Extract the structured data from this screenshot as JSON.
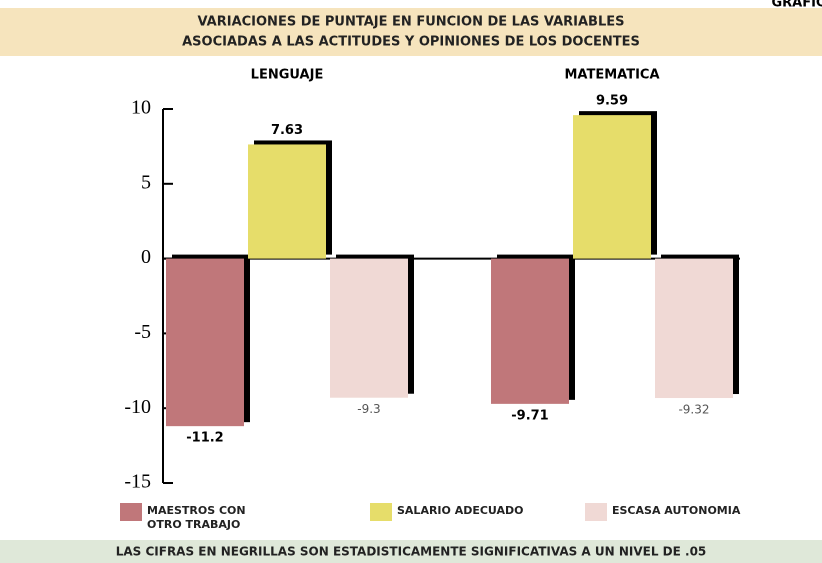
{
  "badge": "GRAFICO",
  "chart_data": {
    "type": "bar",
    "title": [
      "VARIACIONES DE PUNTAJE EN FUNCION DE LAS VARIABLES",
      "ASOCIADAS A LAS ACTITUDES Y OPINIONES DE LOS DOCENTES"
    ],
    "categories": [
      "LENGUAJE",
      "MATEMATICA"
    ],
    "series": [
      {
        "name": "MAESTROS CON OTRO TRABAJO",
        "color": "#c0777a",
        "values": [
          -11.2,
          -9.71
        ],
        "bold": [
          true,
          true
        ]
      },
      {
        "name": "SALARIO ADECUADO",
        "color": "#e6dd6a",
        "values": [
          7.63,
          9.59
        ],
        "bold": [
          true,
          true
        ]
      },
      {
        "name": "ESCASA AUTONOMIA",
        "color": "#f0d9d5",
        "values": [
          -9.3,
          -9.32
        ],
        "bold": [
          false,
          false
        ]
      }
    ],
    "ylim": [
      -15,
      10
    ],
    "yticks": [
      10,
      5,
      0,
      -5,
      -10,
      -15
    ],
    "footnote": "LAS CIFRAS EN NEGRILLAS SON ESTADISTICAMENTE SIGNIFICATIVAS A UN NIVEL DE .05"
  }
}
